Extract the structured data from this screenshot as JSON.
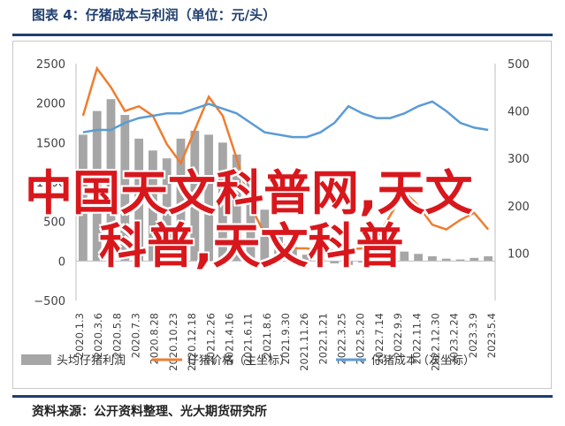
{
  "header": {
    "title": "图表 4：仔猪成本与利润（单位：元/头）"
  },
  "footer": {
    "source": "资料来源：公开资料整理、光大期货研究所"
  },
  "watermark": {
    "line1": "中国天文科普网,天文",
    "line2": "科普,天文科普"
  },
  "colors": {
    "accent": "#1f3f6f",
    "bar": "#a6a6a6",
    "price": "#ed7d31",
    "cost": "#5b9bd5",
    "watermark": "#d8171c"
  },
  "chart_data": {
    "type": "bar",
    "title": "",
    "xlabel": "",
    "ylabel": "",
    "y_left": {
      "lim": [
        -500,
        2500
      ],
      "ticks": [
        -500,
        0,
        500,
        1000,
        1500,
        2000,
        2500
      ]
    },
    "y_right": {
      "lim": [
        0,
        500
      ],
      "ticks": [
        100,
        200,
        300,
        400,
        500
      ]
    },
    "x_tick_labels": [
      "2020.1.3",
      "2020.3.6",
      "2020.5.8",
      "2020.7.3",
      "2020.8.28",
      "2020.10.23",
      "2020.12.18",
      "2021.2.26",
      "2021.4.16",
      "2021.6.11",
      "2021.8.6",
      "2021.9.30",
      "2021.11.26",
      "2022.1.21",
      "2022.3.25",
      "2022.5.20",
      "2022.7.14",
      "2022.9.9",
      "2022.11.4",
      "2022.12.30",
      "2023.2.24",
      "2023.3.9",
      "2023.5.4"
    ],
    "x": [
      "2020.1.3",
      "2020.2.14",
      "2020.3.27",
      "2020.5.8",
      "2020.6.19",
      "2020.7.31",
      "2020.9.11",
      "2020.10.23",
      "2020.12.4",
      "2021.1.15",
      "2021.2.26",
      "2021.4.9",
      "2021.5.21",
      "2021.7.2",
      "2021.8.13",
      "2021.9.24",
      "2021.11.5",
      "2021.12.17",
      "2022.1.28",
      "2022.3.11",
      "2022.4.22",
      "2022.6.3",
      "2022.7.15",
      "2022.8.26",
      "2022.10.7",
      "2022.11.18",
      "2022.12.30",
      "2023.2.10",
      "2023.3.24",
      "2023.5.5"
    ],
    "series": [
      {
        "name": "头均仔猪利润",
        "axis": "left",
        "kind": "bar",
        "values": [
          1600,
          1900,
          2050,
          1850,
          1550,
          1400,
          1300,
          1550,
          1650,
          1600,
          1500,
          1350,
          1000,
          650,
          350,
          180,
          80,
          20,
          -30,
          -50,
          -20,
          30,
          80,
          120,
          90,
          60,
          30,
          20,
          40,
          60
        ]
      },
      {
        "name": "仔猪价格（主坐标）",
        "axis": "right",
        "kind": "line",
        "values": [
          390,
          490,
          450,
          400,
          410,
          390,
          330,
          290,
          360,
          430,
          390,
          300,
          200,
          140,
          120,
          110,
          110,
          105,
          105,
          108,
          110,
          130,
          180,
          230,
          200,
          160,
          150,
          170,
          185,
          150
        ]
      },
      {
        "name": "仔猪成本（次坐标）",
        "axis": "right",
        "kind": "line",
        "values": [
          355,
          360,
          360,
          375,
          385,
          390,
          395,
          395,
          405,
          415,
          405,
          395,
          375,
          355,
          350,
          345,
          345,
          355,
          375,
          410,
          395,
          385,
          385,
          395,
          410,
          420,
          400,
          375,
          365,
          360
        ]
      }
    ],
    "legend": {
      "placement": "bottom"
    },
    "grid": false
  }
}
